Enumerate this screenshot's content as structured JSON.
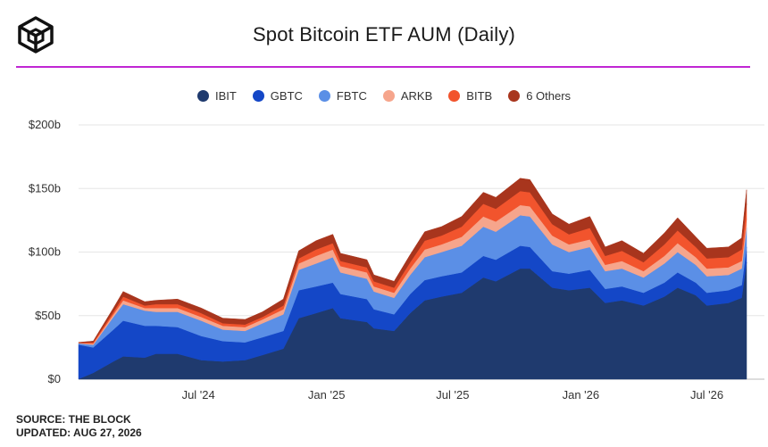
{
  "title": "Spot Bitcoin ETF AUM (Daily)",
  "colors": {
    "accent": "#c026d3",
    "grid": "#e6e6e6"
  },
  "footer": {
    "source": "SOURCE: THE BLOCK",
    "updated": "UPDATED: AUG 27, 2026"
  },
  "chart_data": {
    "type": "area",
    "stacked": true,
    "ylim": [
      0,
      200
    ],
    "y_ticks": [
      "$0",
      "$50b",
      "$100b",
      "$150b",
      "$200b"
    ],
    "y_tick_values": [
      0,
      50,
      100,
      150,
      200
    ],
    "x_ticks": [
      "Jul '24",
      "Jan '25",
      "Jul '25",
      "Jan '26",
      "Jul '26"
    ],
    "x_tick_positions": [
      "2024-07-01",
      "2025-01-01",
      "2025-07-01",
      "2026-01-01",
      "2026-07-01"
    ],
    "xlim": [
      "2024-01-11",
      "2026-08-27"
    ],
    "grid": true,
    "legend_position": "top-center",
    "x": [
      "2024-01-11",
      "2024-02-01",
      "2024-03-01",
      "2024-03-15",
      "2024-04-15",
      "2024-05-01",
      "2024-06-01",
      "2024-07-05",
      "2024-08-05",
      "2024-09-06",
      "2024-10-01",
      "2024-10-31",
      "2024-11-22",
      "2024-12-17",
      "2025-01-10",
      "2025-01-21",
      "2025-02-28",
      "2025-03-10",
      "2025-04-08",
      "2025-05-01",
      "2025-05-22",
      "2025-06-15",
      "2025-07-14",
      "2025-08-14",
      "2025-09-01",
      "2025-10-06",
      "2025-10-20",
      "2025-11-21",
      "2025-12-15",
      "2026-01-14",
      "2026-02-05",
      "2026-03-01",
      "2026-04-01",
      "2026-05-01",
      "2026-05-20",
      "2026-06-15",
      "2026-07-01",
      "2026-08-01",
      "2026-08-20",
      "2026-08-27"
    ],
    "series": [
      {
        "name": "IBIT",
        "color": "#1f3a6e",
        "values": [
          0.2,
          5,
          14,
          18,
          17,
          20,
          20,
          15,
          14,
          15,
          19,
          24,
          48,
          52,
          56,
          48,
          45,
          40,
          38,
          52,
          62,
          65,
          68,
          80,
          77,
          87,
          87,
          72,
          70,
          72,
          60,
          62,
          58,
          65,
          72,
          66,
          58,
          60,
          64,
          92
        ]
      },
      {
        "name": "GBTC",
        "color": "#1447c7",
        "values": [
          27,
          20,
          25,
          28,
          25,
          22,
          21,
          19,
          16,
          14,
          14,
          14,
          22,
          21,
          20,
          19,
          18,
          15,
          13,
          15,
          16,
          16,
          16,
          17,
          17,
          18,
          17,
          13,
          13,
          14,
          11,
          11,
          10,
          11,
          12,
          10,
          10,
          10,
          10,
          12
        ]
      },
      {
        "name": "FBTC",
        "color": "#5b8fe6",
        "values": [
          1,
          2,
          10,
          13,
          12,
          11,
          12,
          12,
          9,
          9,
          11,
          13,
          16,
          18,
          20,
          17,
          16,
          14,
          13,
          15,
          18,
          19,
          21,
          23,
          22,
          24,
          24,
          21,
          17,
          18,
          14,
          14,
          12,
          15,
          16,
          14,
          13,
          12,
          13,
          15
        ]
      },
      {
        "name": "ARKB",
        "color": "#f6a58c",
        "values": [
          0.3,
          1,
          2,
          3,
          2,
          3,
          3,
          3,
          3,
          3,
          3,
          4,
          5,
          6,
          6,
          5,
          5,
          4,
          4,
          5,
          6,
          6,
          7,
          8,
          8,
          8,
          8,
          7,
          6,
          6,
          5,
          6,
          5,
          6,
          7,
          6,
          6,
          6,
          6,
          7
        ]
      },
      {
        "name": "BITB",
        "color": "#f2542d",
        "values": [
          0.2,
          1,
          2,
          3,
          2,
          3,
          3,
          3,
          2,
          2,
          2,
          3,
          4,
          5,
          5,
          4,
          4,
          4,
          4,
          5,
          7,
          7,
          8,
          10,
          10,
          11,
          11,
          9,
          8,
          9,
          7,
          8,
          7,
          9,
          10,
          8,
          8,
          8,
          9,
          12
        ]
      },
      {
        "name": "6 Others",
        "color": "#a8351d",
        "values": [
          0.3,
          1,
          3,
          4,
          3,
          3,
          4,
          4,
          4,
          4,
          4,
          5,
          6,
          7,
          7,
          6,
          6,
          5,
          5,
          6,
          7,
          7,
          8,
          9,
          9,
          10,
          10,
          8,
          8,
          9,
          7,
          8,
          7,
          9,
          10,
          8,
          8,
          8,
          9,
          11
        ]
      }
    ]
  }
}
